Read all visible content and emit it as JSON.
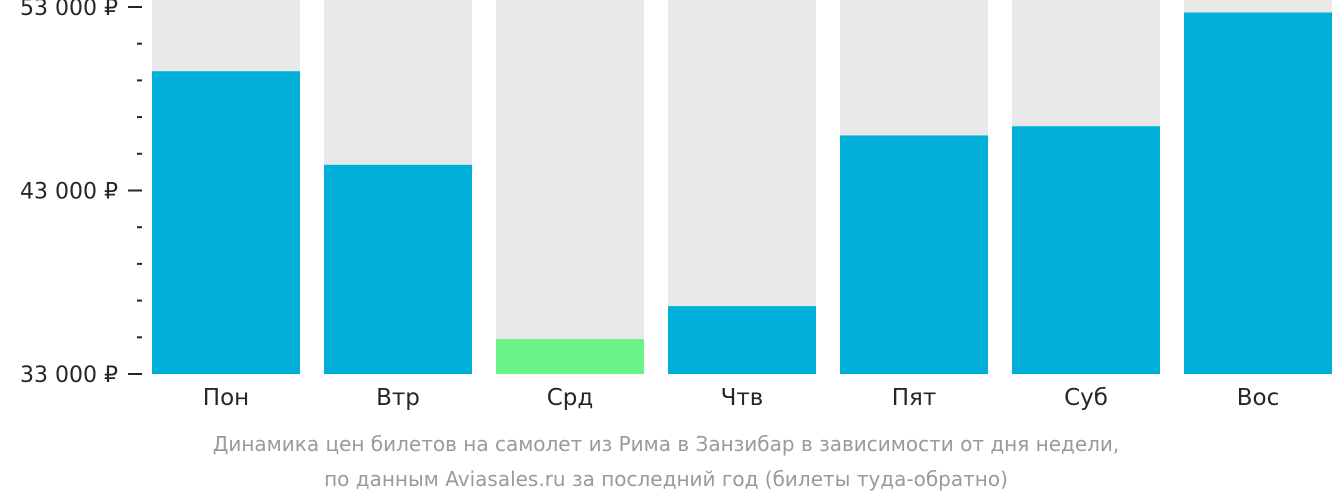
{
  "colors": {
    "bar": "#00b0db",
    "bar_min": "#69f288",
    "track": "#e8e8e8",
    "axis": "#262626"
  },
  "chart_data": {
    "type": "bar",
    "categories": [
      "Пон",
      "Втр",
      "Срд",
      "Чтв",
      "Пят",
      "Суб",
      "Вос"
    ],
    "values": [
      49500,
      44400,
      34900,
      36700,
      46000,
      46500,
      52700
    ],
    "ylim": [
      33000,
      53000
    ],
    "y_tick_labels": [
      "53 000 ₽",
      "43 000 ₽",
      "33 000 ₽"
    ],
    "y_tick_values": [
      53000,
      43000,
      33000
    ],
    "y_minor_step": 2000,
    "highlight_min_index": 2
  },
  "caption": {
    "line1": "Динамика цен билетов на самолет из Рима в Занзибар в зависимости от дня недели,",
    "line2": "по данным Aviasales.ru за последний год (билеты туда-обратно)"
  }
}
